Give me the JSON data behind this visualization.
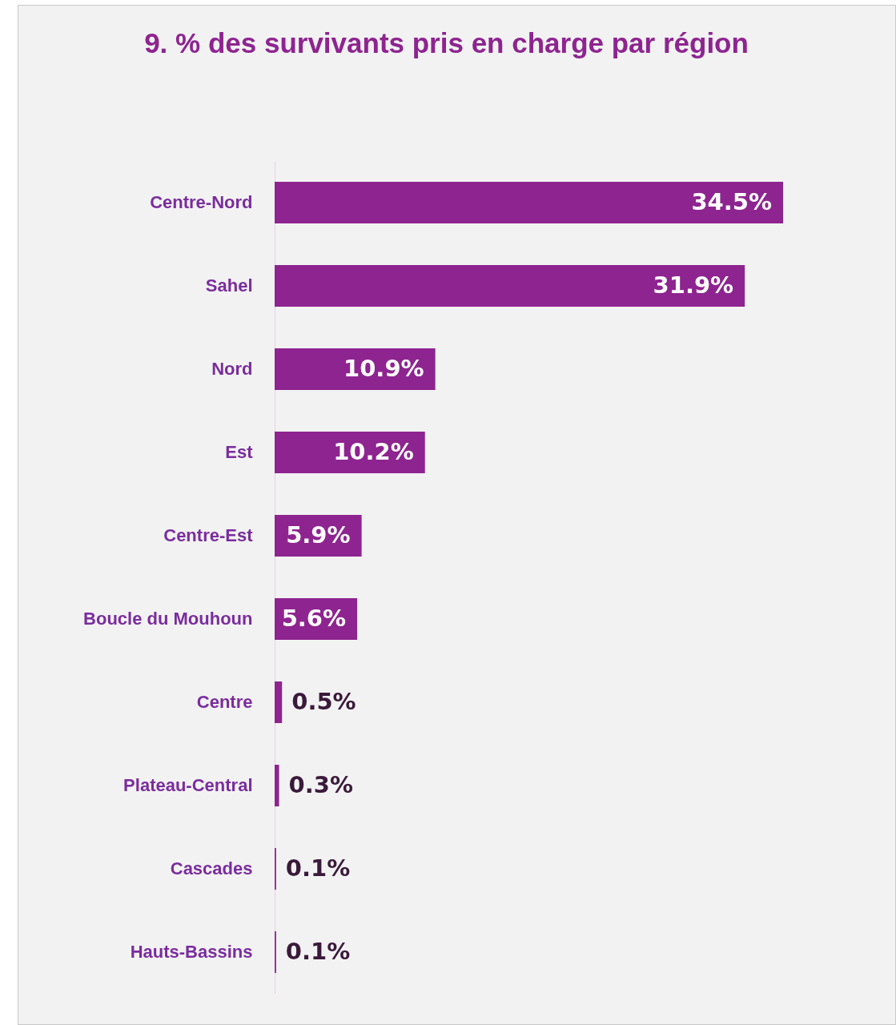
{
  "chart_data": {
    "type": "bar",
    "orientation": "horizontal",
    "title": "9. % des survivants pris en charge par région",
    "categories": [
      "Centre-Nord",
      "Sahel",
      "Nord",
      "Est",
      "Centre-Est",
      "Boucle du Mouhoun",
      "Centre",
      "Plateau-Central",
      "Cascades",
      "Hauts-Bassins"
    ],
    "values": [
      34.5,
      31.9,
      10.9,
      10.2,
      5.9,
      5.6,
      0.5,
      0.3,
      0.1,
      0.1
    ],
    "value_labels": [
      "34.5%",
      "31.9%",
      "10.9%",
      "10.2%",
      "5.9%",
      "5.6%",
      "0.5%",
      "0.3%",
      "0.1%",
      "0.1%"
    ],
    "color": "#8e2490"
  }
}
